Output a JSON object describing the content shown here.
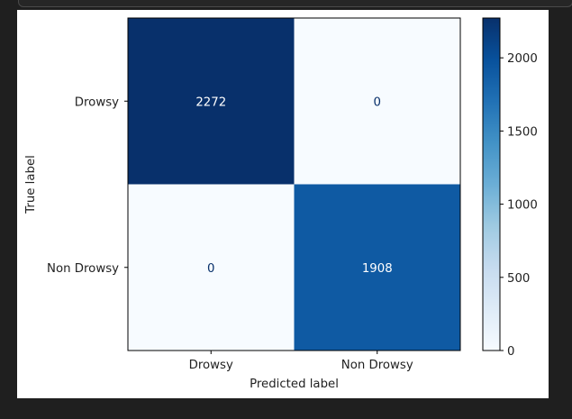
{
  "chart_data": {
    "type": "heatmap",
    "title": "",
    "xlabel": "Predicted label",
    "ylabel": "True label",
    "x_categories": [
      "Drowsy",
      "Non Drowsy"
    ],
    "y_categories": [
      "Drowsy",
      "Non Drowsy"
    ],
    "values": [
      [
        2272,
        0
      ],
      [
        0,
        1908
      ]
    ],
    "colorscale": "Blues",
    "colorbar": {
      "min": 0,
      "max": 2272,
      "ticks": [
        0,
        500,
        1000,
        1500,
        2000
      ]
    }
  }
}
